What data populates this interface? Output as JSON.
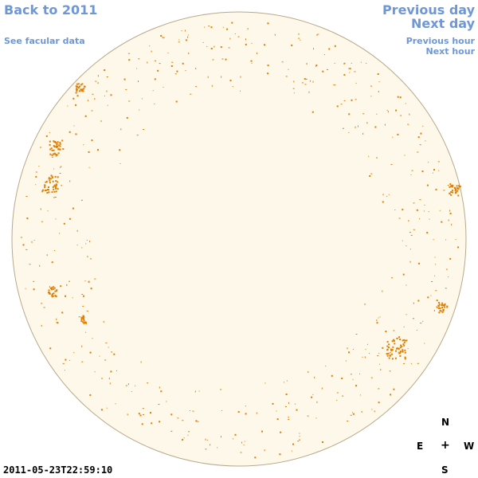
{
  "nav": {
    "back_label": "Back to 2011",
    "facular_label": "See facular data",
    "prev_day_label": "Previous day",
    "next_day_label": "Next day",
    "prev_hour_label": "Previous hour",
    "next_hour_label": "Next hour"
  },
  "compass": {
    "north": "N",
    "east": "E",
    "center": "+",
    "west": "W",
    "south": "S"
  },
  "timestamp": "2011-05-23T22:59:10",
  "colors": {
    "link": "#6f97d6",
    "disk_fill": "#fdf8ea",
    "disk_outline": "#b9a98a",
    "feature": "#e07f00"
  }
}
